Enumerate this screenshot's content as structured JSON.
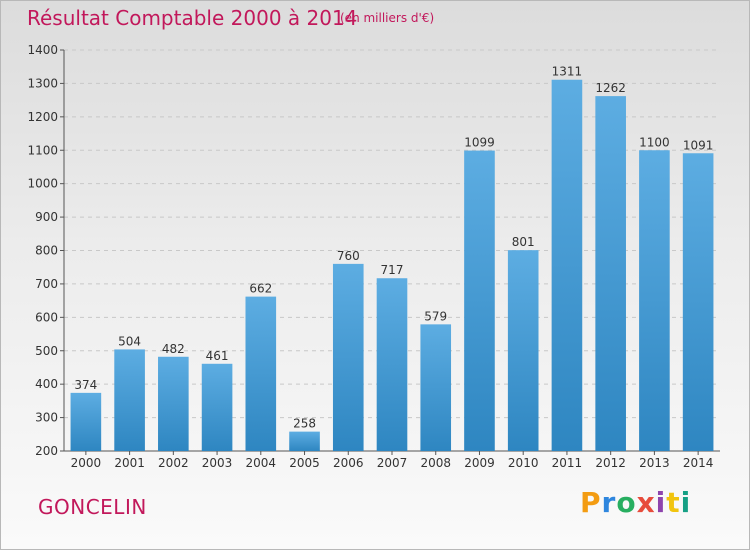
{
  "header": {
    "title": "Résultat Comptable 2000 à 2014",
    "subtitle": "(en milliers d'€)"
  },
  "footer": {
    "commune": "GONCELIN",
    "logo_text": "Proxiti",
    "logo_colors": [
      "#f39c12",
      "#2e86de",
      "#27ae60",
      "#e74c3c",
      "#8e44ad",
      "#f1c40f",
      "#16a085"
    ]
  },
  "colors": {
    "bar_top": "#5dade2",
    "bar_bottom": "#2e86c1",
    "accent": "#c2185b"
  },
  "chart_data": {
    "type": "bar",
    "title": "Résultat Comptable 2000 à 2014",
    "subtitle": "(en milliers d'€)",
    "xlabel": "",
    "ylabel": "",
    "categories": [
      "2000",
      "2001",
      "2002",
      "2003",
      "2004",
      "2005",
      "2006",
      "2007",
      "2008",
      "2009",
      "2010",
      "2011",
      "2012",
      "2013",
      "2014"
    ],
    "values": [
      374,
      504,
      482,
      461,
      662,
      258,
      760,
      717,
      579,
      1099,
      801,
      1311,
      1262,
      1100,
      1091
    ],
    "ylim": [
      200,
      1400
    ],
    "yticks": [
      200,
      300,
      400,
      500,
      600,
      700,
      800,
      900,
      1000,
      1100,
      1200,
      1300,
      1400
    ],
    "grid": true,
    "legend": "none"
  }
}
